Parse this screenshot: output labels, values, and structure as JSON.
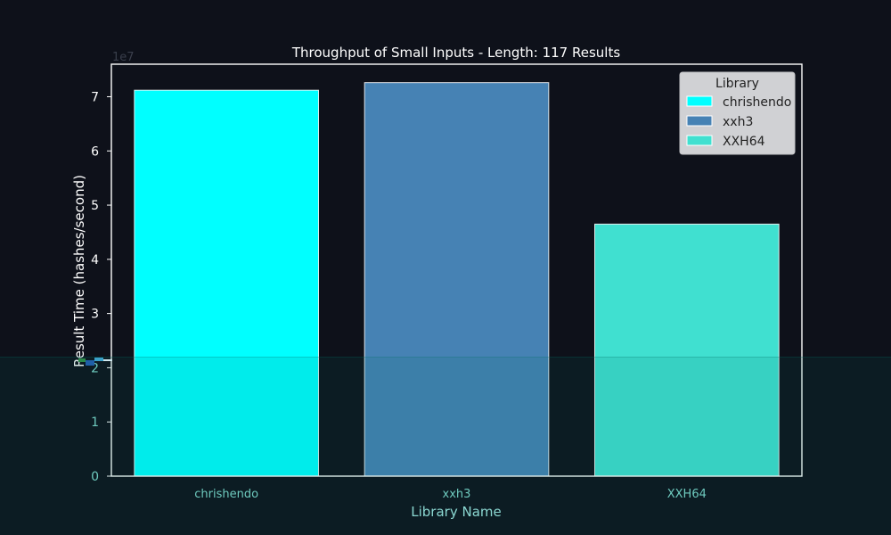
{
  "chart_data": {
    "type": "bar",
    "title": "Throughput of Small Inputs - Length: 117 Results",
    "xlabel": "Library Name",
    "ylabel": "Result Time (hashes/second)",
    "offset_label": "1e7",
    "categories": [
      "chrishendo",
      "xxh3",
      "XXH64"
    ],
    "values": [
      71200000,
      72600000,
      46500000
    ],
    "colors": [
      "#00ffff",
      "#4682b4",
      "#40e0d0"
    ],
    "ylim": [
      0,
      76000000
    ],
    "yticks": [
      0,
      1,
      2,
      3,
      4,
      5,
      6,
      7
    ],
    "grid": false,
    "legend": {
      "title": "Library",
      "position": "top-right",
      "entries": [
        "chrishendo",
        "xxh3",
        "XXH64"
      ]
    }
  },
  "style": {
    "background": "#0e111a",
    "text_color": "#ffffff",
    "lower_tick_color": "#7fd8cc",
    "tint_color": "#006e64"
  }
}
